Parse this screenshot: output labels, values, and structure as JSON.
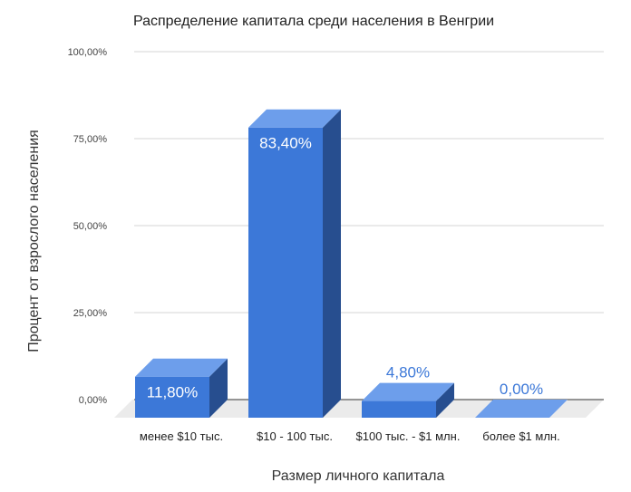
{
  "chart_data": {
    "type": "bar",
    "title": "Распределение капитала среди населения в Венгрии",
    "xlabel": "Размер личного капитала",
    "ylabel": "Процент от взрослого населения",
    "categories": [
      "менее $10 тыс.",
      "$10  - 100 тыс.",
      "$100 тыс. - $1 млн.",
      "более $1 млн."
    ],
    "values": [
      11.8,
      83.4,
      4.8,
      0.0
    ],
    "data_labels": [
      "11,80%",
      "83,40%",
      "4,80%",
      "0,00%"
    ],
    "yticks": [
      0,
      25,
      50,
      75,
      100
    ],
    "ytick_labels": [
      "0,00%",
      "25,00%",
      "50,00%",
      "75,00%",
      "100,00%"
    ],
    "ylim": [
      0,
      100
    ],
    "grid": true,
    "style": "3d",
    "colors": {
      "front": "#3c78d8",
      "top": "#6d9eeb",
      "side": "#274e8f",
      "floor": "#ebebeb",
      "grid": "#d4d4d4",
      "label_inside": "#ffffff",
      "label_outside": "#3c78d8"
    }
  }
}
